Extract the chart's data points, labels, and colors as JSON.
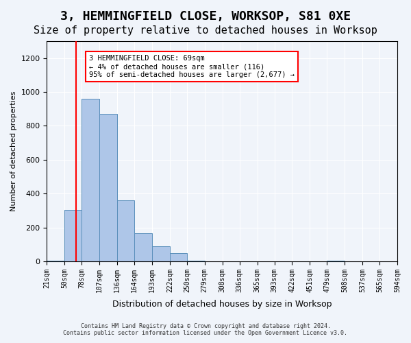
{
  "title": "3, HEMMINGFIELD CLOSE, WORKSOP, S81 0XE",
  "subtitle": "Size of property relative to detached houses in Worksop",
  "xlabel": "Distribution of detached houses by size in Worksop",
  "ylabel": "Number of detached properties",
  "footer_line1": "Contains HM Land Registry data © Crown copyright and database right 2024.",
  "footer_line2": "Contains public sector information licensed under the Open Government Licence v3.0.",
  "bin_edges": [
    21,
    50,
    78,
    107,
    136,
    164,
    193,
    222,
    250,
    279,
    308,
    336,
    365,
    393,
    422,
    451,
    479,
    508,
    537,
    565,
    594
  ],
  "bar_heights": [
    5,
    305,
    960,
    870,
    360,
    165,
    90,
    50,
    5,
    0,
    0,
    0,
    0,
    0,
    0,
    0,
    5,
    0,
    0,
    0
  ],
  "bar_color": "#aec6e8",
  "bar_edge_color": "#5a8fbb",
  "property_size": 69,
  "annotation_text": "3 HEMMINGFIELD CLOSE: 69sqm\n← 4% of detached houses are smaller (116)\n95% of semi-detached houses are larger (2,677) →",
  "annotation_box_color": "white",
  "annotation_box_edge": "red",
  "vline_color": "red",
  "ylim": [
    0,
    1300
  ],
  "yticks": [
    0,
    200,
    400,
    600,
    800,
    1000,
    1200
  ],
  "background_color": "#f0f4fa",
  "axes_background": "#f0f4fa",
  "grid_color": "white",
  "title_fontsize": 13,
  "subtitle_fontsize": 11,
  "tick_labels": [
    "21sqm",
    "50sqm",
    "78sqm",
    "107sqm",
    "136sqm",
    "164sqm",
    "193sqm",
    "222sqm",
    "250sqm",
    "279sqm",
    "308sqm",
    "336sqm",
    "365sqm",
    "393sqm",
    "422sqm",
    "451sqm",
    "479sqm",
    "508sqm",
    "537sqm",
    "565sqm",
    "594sqm"
  ]
}
